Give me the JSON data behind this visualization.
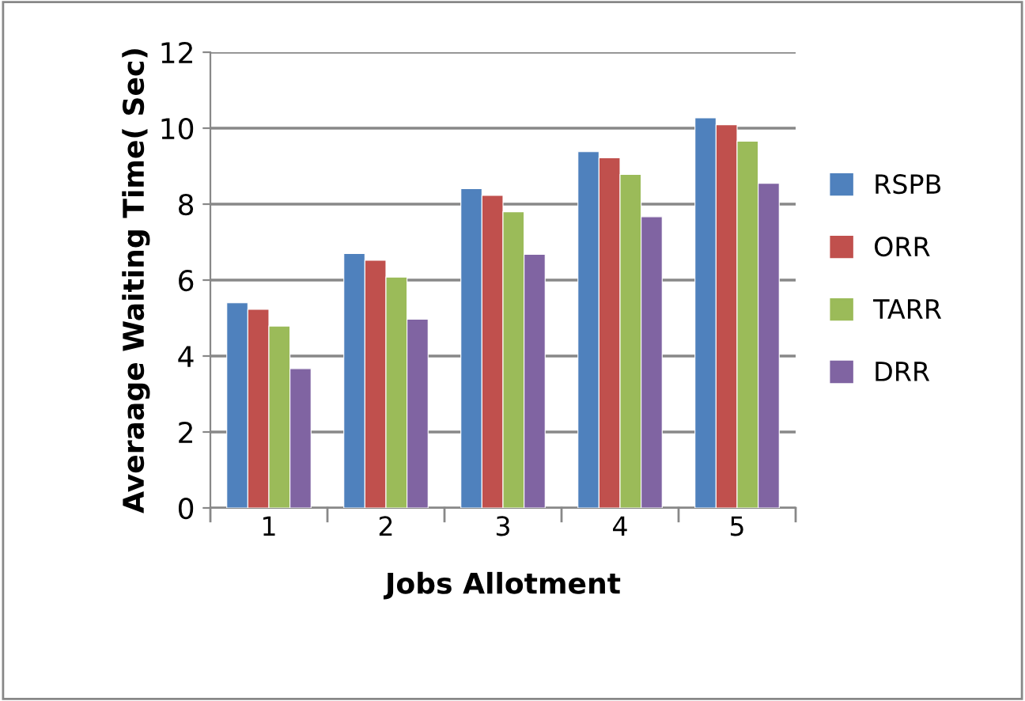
{
  "chart_data": {
    "type": "bar",
    "xlabel": "Jobs Allotment",
    "ylabel": "Averaage Waiting Time( Sec)",
    "categories": [
      "1",
      "2",
      "3",
      "4",
      "5"
    ],
    "series": [
      {
        "name": "RSPB",
        "color": "#4f81bd",
        "values": [
          5.4,
          6.7,
          8.41,
          9.38,
          10.27
        ]
      },
      {
        "name": "ORR",
        "color": "#c0504d",
        "values": [
          5.23,
          6.52,
          8.23,
          9.22,
          10.09
        ]
      },
      {
        "name": "TARR",
        "color": "#9bbb59",
        "values": [
          4.79,
          6.08,
          7.8,
          8.78,
          9.66
        ]
      },
      {
        "name": "DRR",
        "color": "#8064a2",
        "values": [
          3.67,
          4.97,
          6.68,
          7.67,
          8.55
        ]
      }
    ],
    "ylim": [
      0,
      12
    ],
    "yticks": [
      0,
      2,
      4,
      6,
      8,
      10,
      12
    ],
    "grid": "y",
    "legend": "right"
  }
}
